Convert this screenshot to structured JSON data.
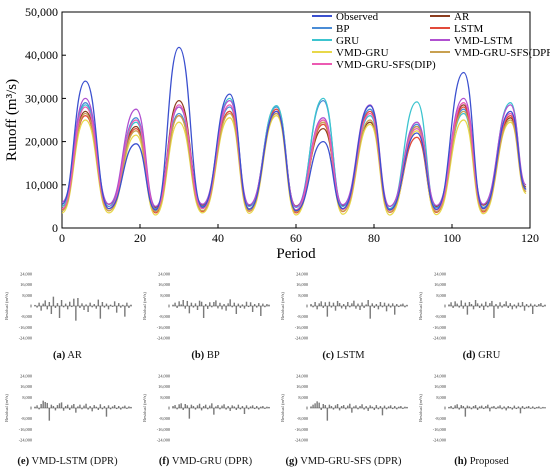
{
  "chart_data": [
    {
      "type": "line",
      "xlabel": "Period",
      "ylabel": "Runoff (m³/s)",
      "xlim": [
        0,
        120
      ],
      "ylim": [
        0,
        50000
      ],
      "xticks": [
        "0",
        "20",
        "40",
        "60",
        "80",
        "100",
        "120"
      ],
      "yticks": [
        "0",
        "10,000",
        "20,000",
        "30,000",
        "40,000",
        "50,000"
      ],
      "legend_position": "top-right, two columns",
      "grid": false,
      "x_peaks_and_troughs": [
        0,
        6,
        12,
        19,
        24,
        30,
        36,
        43,
        48,
        55,
        60,
        67,
        72,
        79,
        84,
        91,
        96,
        103,
        108,
        115,
        119
      ],
      "series": [
        {
          "name": "Observed",
          "color": "#3b50cf",
          "values": [
            5500,
            34000,
            4500,
            19500,
            4200,
            41800,
            4800,
            31000,
            4300,
            27000,
            4000,
            20000,
            4500,
            28300,
            4200,
            22000,
            4300,
            36000,
            4500,
            27000,
            9000
          ]
        },
        {
          "name": "AR",
          "color": "#8c3d1e",
          "values": [
            5000,
            27000,
            5500,
            23500,
            4800,
            29500,
            5300,
            27000,
            5200,
            26500,
            5100,
            23000,
            5200,
            24500,
            5000,
            23500,
            5000,
            28500,
            5300,
            25500,
            9500
          ]
        },
        {
          "name": "BP",
          "color": "#4a8cd6",
          "values": [
            6000,
            29000,
            5000,
            25500,
            4500,
            26500,
            5000,
            28000,
            5000,
            28000,
            4800,
            29500,
            5000,
            27500,
            4500,
            24000,
            4700,
            27500,
            4800,
            26500,
            9000
          ]
        },
        {
          "name": "LSTM",
          "color": "#e24a3a",
          "values": [
            4200,
            26000,
            4000,
            23000,
            3500,
            26000,
            3800,
            27000,
            3900,
            27500,
            3500,
            24000,
            3800,
            27000,
            3600,
            21000,
            3600,
            28000,
            3700,
            26000,
            8500
          ]
        },
        {
          "name": "GRU",
          "color": "#3cc4cf",
          "values": [
            5000,
            28500,
            4500,
            24500,
            4000,
            28000,
            4500,
            30000,
            4500,
            28300,
            4200,
            30000,
            4500,
            26000,
            4300,
            29200,
            4200,
            26500,
            4500,
            29000,
            9000
          ]
        },
        {
          "name": "VMD-LSTM",
          "color": "#b050d0",
          "values": [
            6000,
            30000,
            5500,
            27500,
            5000,
            28000,
            5500,
            29500,
            5400,
            27000,
            5000,
            25500,
            5400,
            28500,
            5000,
            24500,
            5200,
            30000,
            5500,
            28500,
            10000
          ]
        },
        {
          "name": "VMD-GRU",
          "color": "#e8d84a",
          "values": [
            3500,
            25000,
            3500,
            21500,
            3000,
            24500,
            3500,
            25500,
            3400,
            26000,
            3000,
            25000,
            3200,
            24000,
            3000,
            22500,
            3100,
            25000,
            3300,
            24500,
            8000
          ]
        },
        {
          "name": "VMD-GRU-SFS(DPR)",
          "color": "#c8a050",
          "values": [
            4000,
            26500,
            4000,
            22500,
            3800,
            26000,
            4000,
            26500,
            4000,
            26500,
            3800,
            24500,
            3900,
            25000,
            3700,
            23500,
            3800,
            27000,
            4000,
            25000,
            8500
          ]
        },
        {
          "name": "VMD-GRU-SFS(DIP)",
          "color": "#ec5ab2",
          "values": [
            4500,
            28000,
            4500,
            25000,
            4200,
            28500,
            4500,
            28500,
            4400,
            27000,
            4200,
            25000,
            4300,
            26500,
            4100,
            23000,
            4200,
            29000,
            4400,
            26500,
            9000
          ]
        }
      ]
    },
    {
      "type": "bar",
      "caption_letter": "(a)",
      "caption_text": " AR",
      "ylabel": "Residual (m³/s)",
      "ylim": [
        -24000,
        24000
      ],
      "yticks": [
        "24,000",
        "16,000",
        "8,000",
        "0",
        "-8,000",
        "-16,000",
        "-24,000"
      ],
      "values": [
        800,
        -1200,
        2500,
        -3500,
        1800,
        4200,
        -2500,
        3000,
        -6000,
        7000,
        -1500,
        2200,
        -9000,
        4500,
        -1000,
        1800,
        -2500,
        3200,
        -800,
        5500,
        -11000,
        6000,
        -1500,
        2000,
        -3000,
        1200,
        -4500,
        2500,
        -1000,
        1500,
        -2000,
        4800,
        -9500,
        3000,
        -1200,
        1800,
        -2500,
        1000,
        -700,
        3500,
        -5000,
        2200,
        -1300,
        900,
        -8000,
        2500,
        -1500,
        1000
      ]
    },
    {
      "type": "bar",
      "caption_letter": "(b)",
      "caption_text": " BP",
      "ylabel": "Residual (m³/s)",
      "ylim": [
        -24000,
        24000
      ],
      "yticks": [
        "24,000",
        "16,000",
        "8,000",
        "0",
        "-8,000",
        "-16,000",
        "-24,000"
      ],
      "values": [
        1000,
        2500,
        -1500,
        3500,
        1200,
        4500,
        -2000,
        3800,
        -5500,
        2500,
        -1200,
        2000,
        -3000,
        4000,
        3200,
        -9000,
        1500,
        -2200,
        2800,
        -1000,
        3000,
        4200,
        -1800,
        2400,
        -2500,
        1500,
        -3500,
        2000,
        5000,
        -1000,
        2500,
        -6000,
        1800,
        -1500,
        1200,
        -2000,
        3200,
        -800,
        2800,
        -4500,
        1500,
        -1200,
        2200,
        -7500,
        1800,
        -900,
        1500,
        1000
      ]
    },
    {
      "type": "bar",
      "caption_letter": "(c)",
      "caption_text": " LSTM",
      "ylabel": "Residual (m³/s)",
      "ylim": [
        -24000,
        24000
      ],
      "yticks": [
        "24,000",
        "16,000",
        "8,000",
        "0",
        "-8,000",
        "-16,000",
        "-24,000"
      ],
      "values": [
        1500,
        -1000,
        3000,
        -2500,
        2000,
        3500,
        -1500,
        2800,
        -8000,
        3200,
        -1200,
        2500,
        -3500,
        3800,
        2200,
        -1800,
        1500,
        -2500,
        3000,
        -1000,
        2000,
        4000,
        -2000,
        1800,
        -3000,
        2600,
        -1500,
        1200,
        4500,
        -9500,
        2000,
        -1500,
        1500,
        -2500,
        3000,
        -1000,
        2500,
        -4000,
        1800,
        -1200,
        2000,
        -6500,
        1500,
        -800,
        1200,
        1800,
        -1000,
        900
      ]
    },
    {
      "type": "bar",
      "caption_letter": "(d)",
      "caption_text": " GRU",
      "ylabel": "Residual (m³/s)",
      "ylim": [
        -24000,
        24000
      ],
      "yticks": [
        "24,000",
        "16,000",
        "8,000",
        "0",
        "-8,000",
        "-16,000",
        "-24,000"
      ],
      "values": [
        1200,
        2800,
        -1500,
        3500,
        1800,
        -1200,
        4200,
        -2000,
        2500,
        -6500,
        3000,
        1500,
        -2500,
        4500,
        2000,
        -1500,
        1800,
        -3000,
        3200,
        -1000,
        2200,
        3800,
        -9000,
        1500,
        -2000,
        2800,
        -1200,
        1500,
        3500,
        -1500,
        2200,
        -2500,
        1200,
        -1800,
        2500,
        -900,
        3000,
        -3500,
        1500,
        -1000,
        1800,
        -6000,
        1200,
        -700,
        1500,
        2200,
        -800,
        1000
      ]
    },
    {
      "type": "bar",
      "caption_letter": "(e)",
      "caption_text": " VMD-LSTM (DPR)",
      "ylabel": "Residual (m³/s)",
      "ylim": [
        -24000,
        24000
      ],
      "yticks": [
        "24,000",
        "16,000",
        "8,000",
        "0",
        "-8,000",
        "-16,000",
        "-24,000"
      ],
      "values": [
        1000,
        2000,
        -1000,
        3000,
        5500,
        4500,
        3800,
        -9500,
        2500,
        1500,
        -1800,
        2200,
        3500,
        4200,
        -2000,
        1500,
        2500,
        -1500,
        2000,
        3000,
        -3500,
        1200,
        2500,
        -1000,
        1800,
        3200,
        -1200,
        1500,
        -2500,
        2200,
        1000,
        -1500,
        2800,
        -1000,
        1500,
        -6500,
        2000,
        -1000,
        1200,
        2200,
        -800,
        1500,
        -1200,
        1000,
        1800,
        -700,
        1200,
        800
      ]
    },
    {
      "type": "bar",
      "caption_letter": "(f)",
      "caption_text": " VMD-GRU (DPR)",
      "ylabel": "Residual (m³/s)",
      "ylim": [
        -24000,
        24000
      ],
      "yticks": [
        "24,000",
        "16,000",
        "8,000",
        "0",
        "-8,000",
        "-16,000",
        "-24,000"
      ],
      "values": [
        1500,
        2200,
        -1000,
        2800,
        3500,
        -1500,
        3000,
        2000,
        -8000,
        2500,
        1500,
        -1200,
        2000,
        3200,
        -1800,
        1500,
        2500,
        -1000,
        1800,
        3500,
        -5000,
        1200,
        2200,
        -1000,
        1800,
        2800,
        -1200,
        1500,
        -2200,
        2000,
        1200,
        -1500,
        2500,
        -1000,
        1500,
        -4500,
        2000,
        -1000,
        1200,
        2000,
        -800,
        1500,
        -1200,
        1000,
        1500,
        -700,
        1000,
        800
      ]
    },
    {
      "type": "bar",
      "caption_letter": "(g)",
      "caption_text": " VMD-GRU-SFS (DPR)",
      "ylabel": "Residual (m³/s)",
      "ylim": [
        -24000,
        24000
      ],
      "yticks": [
        "24,000",
        "16,000",
        "8,000",
        "0",
        "-8,000",
        "-16,000",
        "-24,000"
      ],
      "values": [
        1200,
        2500,
        3500,
        5000,
        4000,
        -1500,
        3000,
        2200,
        -9500,
        2500,
        1500,
        -1200,
        2000,
        3000,
        -1800,
        1500,
        2200,
        -1000,
        1800,
        3200,
        -3500,
        1200,
        2000,
        -1000,
        1500,
        2800,
        -1200,
        1500,
        -2200,
        2000,
        1000,
        -1500,
        2200,
        -1000,
        1500,
        -5500,
        1800,
        -1000,
        1200,
        2000,
        -800,
        1500,
        -1000,
        1000,
        1500,
        -700,
        1000,
        800
      ]
    },
    {
      "type": "bar",
      "caption_letter": "(h)",
      "caption_text": " Proposed",
      "ylabel": "Residual (m³/s)",
      "ylim": [
        -24000,
        24000
      ],
      "yticks": [
        "24,000",
        "16,000",
        "8,000",
        "0",
        "-8,000",
        "-16,000",
        "-24,000"
      ],
      "values": [
        800,
        1500,
        -800,
        2000,
        2800,
        -1200,
        2200,
        1500,
        -6500,
        1800,
        1200,
        -1000,
        1500,
        2200,
        -1500,
        1200,
        1800,
        -800,
        1500,
        2500,
        -2500,
        1000,
        1500,
        -800,
        1200,
        2000,
        -1000,
        1200,
        -1800,
        1500,
        800,
        -1200,
        1800,
        -800,
        1200,
        -4000,
        1500,
        -800,
        1000,
        1500,
        -600,
        1200,
        -800,
        800,
        1200,
        -500,
        800,
        600
      ]
    }
  ]
}
